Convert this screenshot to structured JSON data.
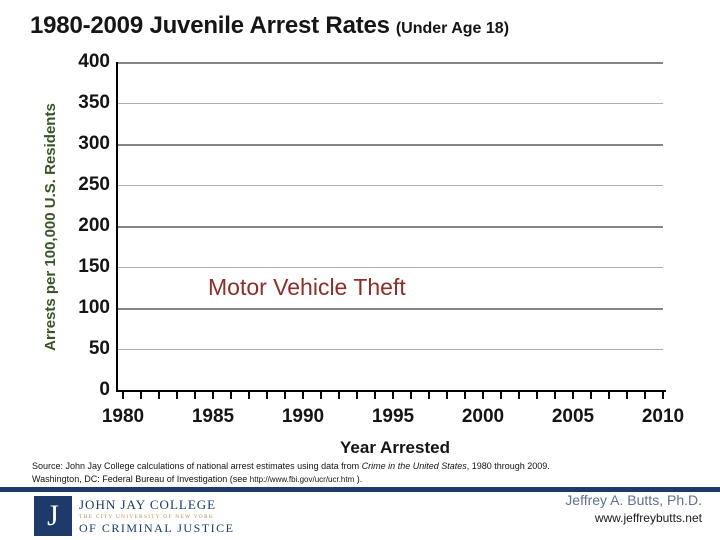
{
  "slide": {
    "title_main": "1980-2009 Juvenile Arrest Rates",
    "title_sub": "(Under Age 18)"
  },
  "chart_data": {
    "type": "line",
    "title": "1980-2009 Juvenile Arrest Rates (Under Age 18)",
    "xlabel": "Year Arrested",
    "ylabel": "Arrests per 100,000 U.S. Residents",
    "xlim": [
      1980,
      2010
    ],
    "ylim": [
      0,
      400
    ],
    "x_major_ticks": [
      1980,
      1985,
      1990,
      1995,
      2000,
      2005,
      2010
    ],
    "x_minor_tick_step": 1,
    "y_ticks": [
      0,
      50,
      100,
      150,
      200,
      250,
      300,
      350,
      400
    ],
    "grid": "horizontal gridlines every 50 units; thicker at multiples of 100; minor x ticks every year below axis",
    "legend_position": "none",
    "series": [],
    "series_label": {
      "text": "Motor Vehicle Theft",
      "x_year": 1985,
      "y_value": 120
    },
    "note": "plot area is empty - series label shown but no data line drawn"
  },
  "source": {
    "line1_prefix": "Source: John Jay College calculations of national arrest estimates using data from ",
    "line1_italic": "Crime in the United States",
    "line1_suffix": ", 1980 through 2009.",
    "line2_prefix": "Washington, DC: Federal Bureau of Investigation (see ",
    "line2_url": "http://www.fbi.gov/ucr/ucr.htm",
    "line2_suffix": " )."
  },
  "footer": {
    "logo": {
      "initial": "J",
      "line1": "JOHN JAY COLLEGE",
      "line2": "THE CITY UNIVERSITY OF NEW YORK",
      "line3": "OF CRIMINAL JUSTICE"
    },
    "author": "Jeffrey A. Butts, Ph.D.",
    "website": "www.jeffreybutts.net"
  },
  "colors": {
    "navy": "#1d3a6a",
    "gold": "#b3924f",
    "y_axis_label_green": "#3a5426",
    "series_label_red": "#8c2f28",
    "author_blue": "#5f7090",
    "grid_major": "#858585",
    "grid_minor": "#b0b0b0",
    "axis_black": "#000000",
    "text": "#141414",
    "background": "#ffffff"
  }
}
